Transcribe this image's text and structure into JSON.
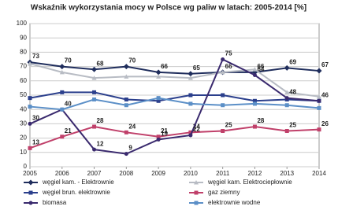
{
  "chart_data": {
    "type": "line",
    "title": "Wskaźnik wykorzystania mocy w Polsce wg paliw w latach: 2005-2014 [%]",
    "x": [
      2005,
      2006,
      2007,
      2008,
      2009,
      2010,
      2011,
      2012,
      2013,
      2014
    ],
    "xlim": [
      2005,
      2014
    ],
    "xticks": [
      2005,
      2006,
      2007,
      2008,
      2009,
      2010,
      2011,
      2012,
      2013,
      2014
    ],
    "ylim": [
      0,
      100
    ],
    "yticks": [
      0,
      10,
      20,
      30,
      40,
      50,
      60,
      70,
      80,
      90,
      100
    ],
    "grid": true,
    "series": [
      {
        "name": "węgiel kam. - Elektrownie",
        "color": "#1f2d5c",
        "marker": "diamond",
        "show_labels": true,
        "values": [
          73,
          70,
          68,
          70,
          66,
          65,
          66,
          66,
          69,
          67
        ]
      },
      {
        "name": "węgiel kam. Elektrociepłownie",
        "color": "#b8bcc4",
        "marker": "triangle",
        "show_labels": false,
        "values": [
          72,
          66,
          62,
          63,
          63,
          62,
          66,
          68,
          52,
          49
        ]
      },
      {
        "name": "węgiel brun. elektrownie",
        "color": "#2b3f8c",
        "marker": "square",
        "show_labels": false,
        "values": [
          48,
          52,
          52,
          47,
          46,
          50,
          50,
          46,
          47,
          46
        ]
      },
      {
        "name": "gaz ziemny",
        "color": "#c0406a",
        "marker": "square",
        "show_labels": true,
        "values": [
          13,
          21,
          28,
          24,
          21,
          24,
          25,
          28,
          25,
          26
        ]
      },
      {
        "name": "biomasa",
        "color": "#3a2a6e",
        "marker": "circle",
        "show_labels": true,
        "values": [
          30,
          40,
          12,
          9,
          19,
          22,
          75,
          64,
          48,
          46
        ]
      },
      {
        "name": "elektrownie wodne",
        "color": "#5b8fc7",
        "marker": "square",
        "show_labels": false,
        "values": [
          42,
          40,
          47,
          43,
          48,
          44,
          43,
          44,
          43,
          41
        ]
      }
    ]
  }
}
